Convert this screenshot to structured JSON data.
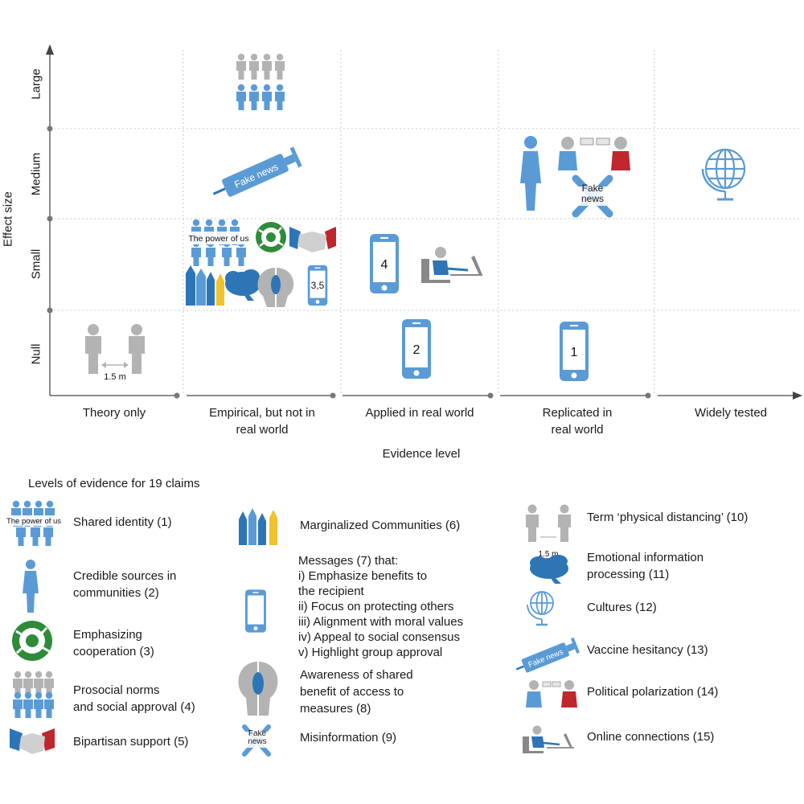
{
  "colors": {
    "blue": "#5b9bd5",
    "dark_blue": "#2e75b6",
    "grey": "#b3b3b3",
    "green": "#2e8b3a",
    "red": "#c0262d",
    "yellow": "#f2c12e",
    "axis": "#666666",
    "grid": "#c8c8c8"
  },
  "axes": {
    "y_title": "Effect size",
    "y_levels": [
      "Large",
      "Medium",
      "Small",
      "Null"
    ],
    "x_title": "Evidence level",
    "x_levels": [
      "Theory only",
      "Empirical, but not in\nreal world",
      "Applied in real world",
      "Replicated in\nreal world",
      "Widely tested"
    ]
  },
  "cells": {
    "large_empirical": {
      "icon": "people-grid-icon"
    },
    "medium_empirical": {
      "icon": "syringe-icon",
      "label": "Fake news"
    },
    "medium_replicated": {
      "icons": [
        "woman-icon",
        "debate-icon",
        "crossed-fake-news-icon"
      ],
      "label": "Fake\nnews"
    },
    "medium_widely": {
      "icon": "globe-icon"
    },
    "small_empirical": {
      "icons": [
        "group-icon",
        "cooperation-icon",
        "handshake-icon",
        "pencils-icon",
        "brain-icon",
        "heads-icon",
        "phone-icon"
      ],
      "group_label": "The power of us",
      "phone_label": "3,5"
    },
    "small_applied": {
      "icons": [
        "phone-icon",
        "computer-user-icon"
      ],
      "phone_label": "4"
    },
    "null_theory": {
      "icon": "distancing-icon",
      "distance_label": "1.5 m"
    },
    "null_applied": {
      "icon": "phone-icon",
      "phone_label": "2"
    },
    "null_replicated": {
      "icon": "phone-icon",
      "phone_label": "1"
    }
  },
  "legend": {
    "title": "Levels of evidence for 19 claims",
    "col1": [
      {
        "icon": "group-icon",
        "icon_label": "The power of us",
        "text": "Shared identity (1)"
      },
      {
        "icon": "woman-icon",
        "text": "Credible sources in\ncommunities (2)"
      },
      {
        "icon": "cooperation-icon",
        "text": "Emphasizing\ncooperation (3)"
      },
      {
        "icon": "people-grid-icon",
        "text": "Prosocial norms\nand social approval (4)"
      },
      {
        "icon": "handshake-icon",
        "text": "Bipartisan support (5)"
      }
    ],
    "col2": [
      {
        "icon": "pencils-icon",
        "text": "Marginalized Communities (6)"
      },
      {
        "icon": "phone-icon",
        "text": "Messages (7) that:\ni) Emphasize benefits to\nthe recipient\nii) Focus on protecting others\niii) Alignment with moral values\niv) Appeal to social consensus\nv) Highlight group approval"
      },
      {
        "icon": "heads-icon",
        "text": "Awareness of shared\nbenefit of access to\nmeasures (8)"
      },
      {
        "icon": "crossed-fake-news-icon",
        "icon_label": "Fake\nnews",
        "text": "Misinformation (9)"
      }
    ],
    "col3": [
      {
        "icon": "distancing-icon",
        "icon_label": "1.5 m",
        "text": "Term ‘physical distancing’ (10)"
      },
      {
        "icon": "brain-icon",
        "text": "Emotional information\nprocessing (11)"
      },
      {
        "icon": "globe-icon",
        "text": "Cultures (12)"
      },
      {
        "icon": "syringe-icon",
        "icon_label": "Fake news",
        "text": "Vaccine hesitancy (13)"
      },
      {
        "icon": "debate-icon",
        "text": "Political polarization (14)"
      },
      {
        "icon": "computer-user-icon",
        "text": "Online connections (15)"
      }
    ]
  }
}
